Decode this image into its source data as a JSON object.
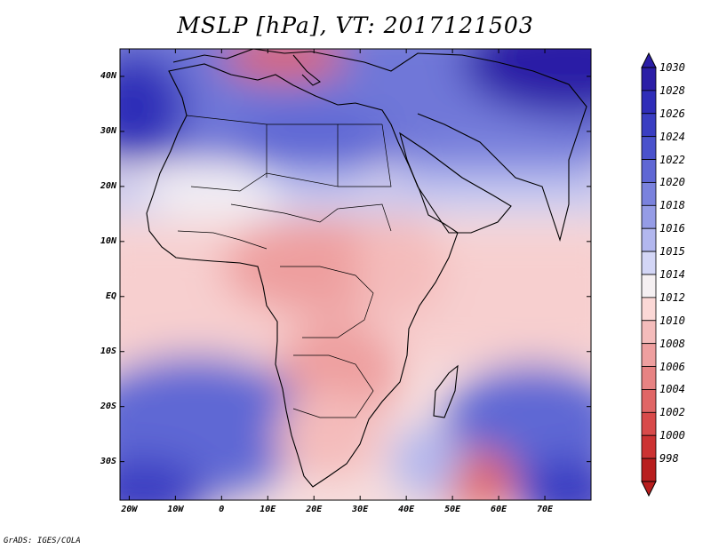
{
  "title": "MSLP [hPa], VT: 2017121503",
  "credit": "GrADS: IGES/COLA",
  "latitude_labels": [
    "40N",
    "30N",
    "20N",
    "10N",
    "EQ",
    "10S",
    "20S",
    "30S"
  ],
  "latitude_values": [
    40,
    30,
    20,
    10,
    0,
    -10,
    -20,
    -30
  ],
  "longitude_labels": [
    "20W",
    "10W",
    "0",
    "10E",
    "20E",
    "30E",
    "40E",
    "50E",
    "60E",
    "70E"
  ],
  "longitude_values": [
    -20,
    -10,
    0,
    10,
    20,
    30,
    40,
    50,
    60,
    70
  ],
  "map_extent": {
    "lon_min": -22,
    "lon_max": 80,
    "lat_min": -37,
    "lat_max": 45
  },
  "colorbar": {
    "levels": [
      "1030",
      "1028",
      "1026",
      "1024",
      "1022",
      "1020",
      "1018",
      "1016",
      "1015",
      "1014",
      "1012",
      "1010",
      "1008",
      "1006",
      "1004",
      "1002",
      "1000",
      "998"
    ],
    "colors": [
      "#2b1ea6",
      "#2f2db8",
      "#3a3ec2",
      "#4a52cc",
      "#5f67d4",
      "#7a82dd",
      "#959ce6",
      "#b2b7ee",
      "#d3d6f6",
      "#f5f0f2",
      "#fbd8d6",
      "#f4bcbb",
      "#ee9f9f",
      "#e78383",
      "#e06666",
      "#d84a4a",
      "#cc3232",
      "#b81e1e"
    ]
  }
}
